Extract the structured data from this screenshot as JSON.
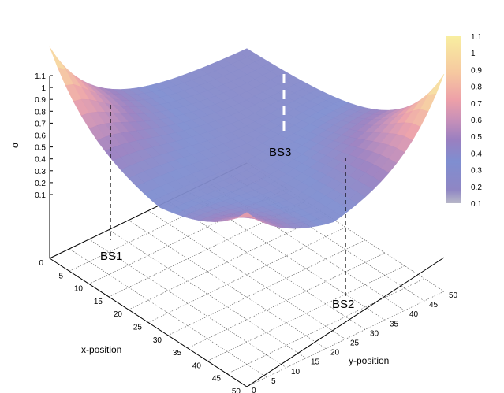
{
  "chart_data": {
    "type": "surface",
    "zlabel": "σ",
    "xlabel": "x-position",
    "ylabel": "y-position",
    "x_range": [
      0,
      50
    ],
    "y_range": [
      0,
      50
    ],
    "z_range": [
      0.1,
      1.1
    ],
    "x_ticks": [
      "0",
      "5",
      "10",
      "15",
      "20",
      "25",
      "30",
      "35",
      "40",
      "45",
      "50"
    ],
    "y_ticks": [
      "0",
      "5",
      "10",
      "15",
      "20",
      "25",
      "30",
      "35",
      "40",
      "45",
      "50"
    ],
    "z_ticks": [
      "0.1",
      "0.2",
      "0.3",
      "0.4",
      "0.5",
      "0.6",
      "0.7",
      "0.8",
      "0.9",
      "1",
      "1.1"
    ],
    "colorbar_ticks": [
      "0.1",
      "0.2",
      "0.3",
      "0.4",
      "0.5",
      "0.6",
      "0.7",
      "0.8",
      "0.9",
      "1",
      "1.1"
    ],
    "grid": true,
    "colorbar_position": "right",
    "base_stations": [
      {
        "label": "BS1",
        "x": 0,
        "y": 0,
        "sigma": 1.05
      },
      {
        "label": "BS2",
        "x": 50,
        "y": 0,
        "sigma": 0.75
      },
      {
        "label": "BS3",
        "x": 50,
        "y": 50,
        "sigma": 1.1
      }
    ],
    "surface_min": 0.25
  }
}
